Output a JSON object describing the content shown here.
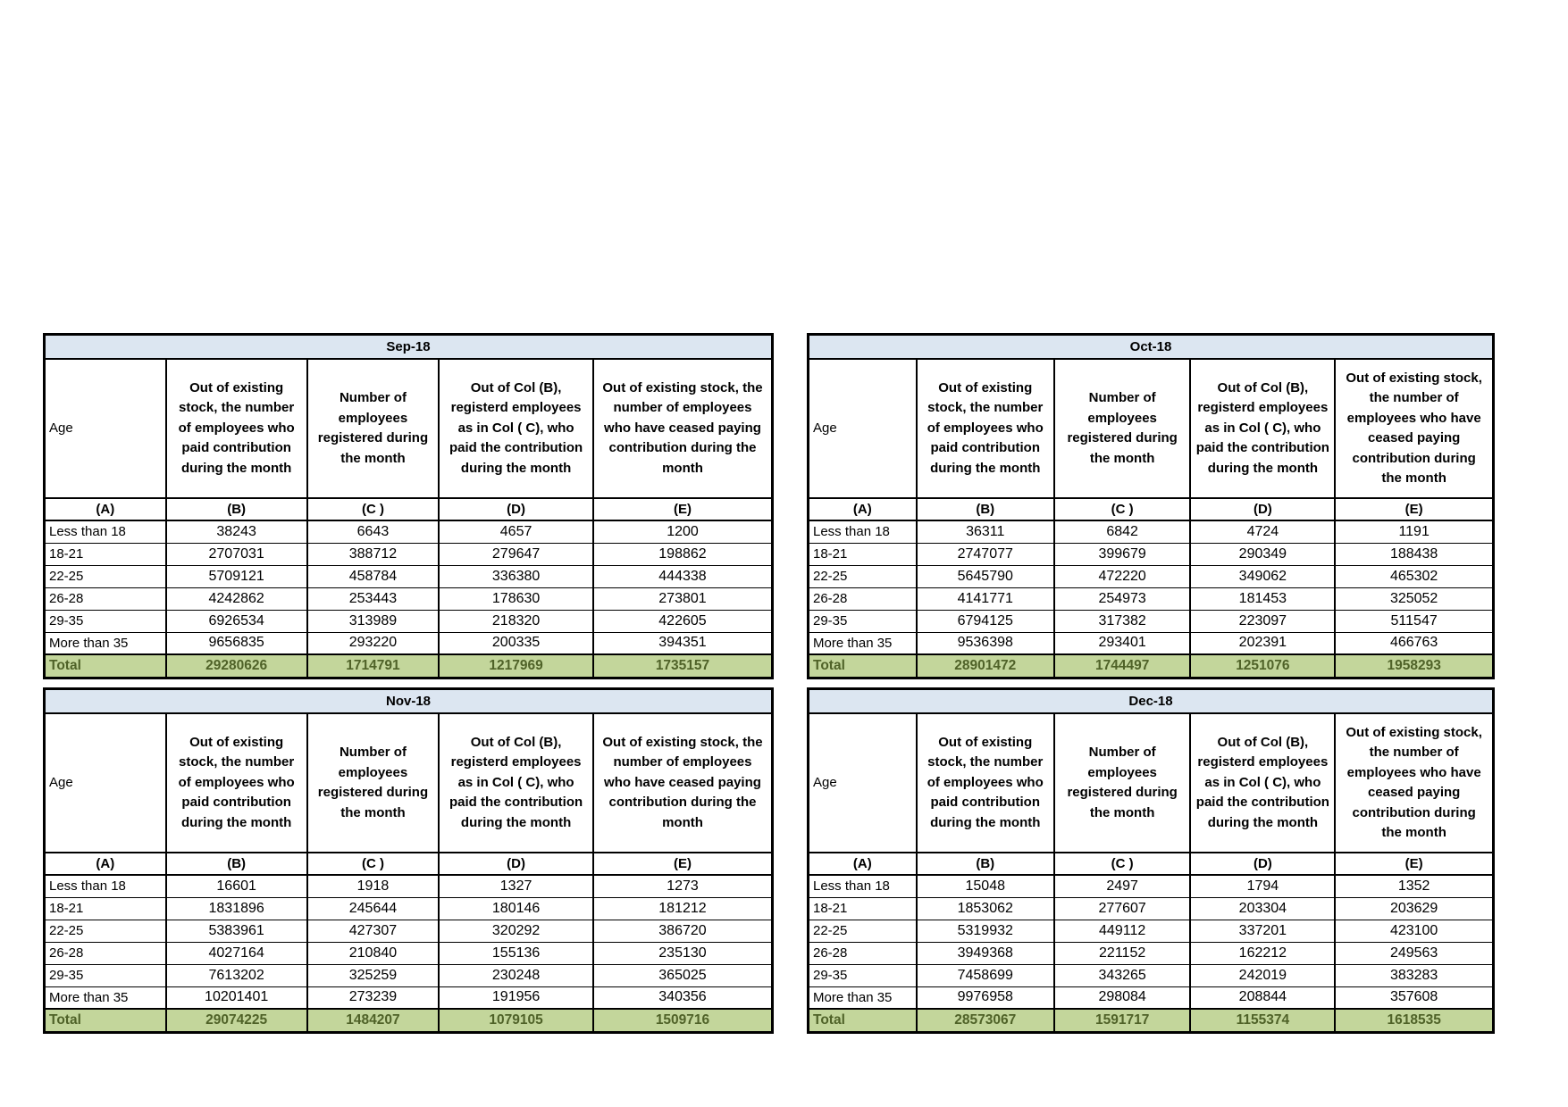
{
  "shared": {
    "age_label": "Age",
    "column_letters": [
      "(A)",
      "(B)",
      "(C )",
      "(D)",
      "(E)"
    ],
    "column_headers": [
      "Out of existing stock, the number of employees who paid contribution during the month",
      "Number of employees registered during the month",
      "Out of Col (B), registerd employees as in Col ( C), who paid the contribution during the month",
      "Out of existing stock, the number of  employees  who have ceased paying contribution during the month"
    ]
  },
  "colors": {
    "title_bar_background": "#dce6f1",
    "total_row_background": "#c3d69b",
    "total_row_text": "#4f6228",
    "border": "#000000"
  },
  "tables": [
    {
      "id": "sep-18",
      "title": "Sep-18",
      "rows": [
        {
          "label": "Less than 18",
          "values": [
            "38243",
            "6643",
            "4657",
            "1200"
          ]
        },
        {
          "label": "18-21",
          "values": [
            "2707031",
            "388712",
            "279647",
            "198862"
          ]
        },
        {
          "label": "22-25",
          "values": [
            "5709121",
            "458784",
            "336380",
            "444338"
          ]
        },
        {
          "label": "26-28",
          "values": [
            "4242862",
            "253443",
            "178630",
            "273801"
          ]
        },
        {
          "label": "29-35",
          "values": [
            "6926534",
            "313989",
            "218320",
            "422605"
          ]
        },
        {
          "label": "More than 35",
          "values": [
            "9656835",
            "293220",
            "200335",
            "394351"
          ]
        }
      ],
      "total": {
        "label": "Total",
        "values": [
          "29280626",
          "1714791",
          "1217969",
          "1735157"
        ]
      }
    },
    {
      "id": "oct-18",
      "title": "Oct-18",
      "rows": [
        {
          "label": "Less than 18",
          "values": [
            "36311",
            "6842",
            "4724",
            "1191"
          ]
        },
        {
          "label": "18-21",
          "values": [
            "2747077",
            "399679",
            "290349",
            "188438"
          ]
        },
        {
          "label": "22-25",
          "values": [
            "5645790",
            "472220",
            "349062",
            "465302"
          ]
        },
        {
          "label": "26-28",
          "values": [
            "4141771",
            "254973",
            "181453",
            "325052"
          ]
        },
        {
          "label": "29-35",
          "values": [
            "6794125",
            "317382",
            "223097",
            "511547"
          ]
        },
        {
          "label": "More than 35",
          "values": [
            "9536398",
            "293401",
            "202391",
            "466763"
          ]
        }
      ],
      "total": {
        "label": "Total",
        "values": [
          "28901472",
          "1744497",
          "1251076",
          "1958293"
        ]
      }
    },
    {
      "id": "nov-18",
      "title": "Nov-18",
      "rows": [
        {
          "label": "Less than 18",
          "values": [
            "16601",
            "1918",
            "1327",
            "1273"
          ]
        },
        {
          "label": "18-21",
          "values": [
            "1831896",
            "245644",
            "180146",
            "181212"
          ]
        },
        {
          "label": "22-25",
          "values": [
            "5383961",
            "427307",
            "320292",
            "386720"
          ]
        },
        {
          "label": "26-28",
          "values": [
            "4027164",
            "210840",
            "155136",
            "235130"
          ]
        },
        {
          "label": "29-35",
          "values": [
            "7613202",
            "325259",
            "230248",
            "365025"
          ]
        },
        {
          "label": "More than 35",
          "values": [
            "10201401",
            "273239",
            "191956",
            "340356"
          ]
        }
      ],
      "total": {
        "label": "Total",
        "values": [
          "29074225",
          "1484207",
          "1079105",
          "1509716"
        ]
      }
    },
    {
      "id": "dec-18",
      "title": "Dec-18",
      "rows": [
        {
          "label": "Less than 18",
          "values": [
            "15048",
            "2497",
            "1794",
            "1352"
          ]
        },
        {
          "label": "18-21",
          "values": [
            "1853062",
            "277607",
            "203304",
            "203629"
          ]
        },
        {
          "label": "22-25",
          "values": [
            "5319932",
            "449112",
            "337201",
            "423100"
          ]
        },
        {
          "label": "26-28",
          "values": [
            "3949368",
            "221152",
            "162212",
            "249563"
          ]
        },
        {
          "label": "29-35",
          "values": [
            "7458699",
            "343265",
            "242019",
            "383283"
          ]
        },
        {
          "label": "More than 35",
          "values": [
            "9976958",
            "298084",
            "208844",
            "357608"
          ]
        }
      ],
      "total": {
        "label": "Total",
        "values": [
          "28573067",
          "1591717",
          "1155374",
          "1618535"
        ]
      }
    }
  ]
}
